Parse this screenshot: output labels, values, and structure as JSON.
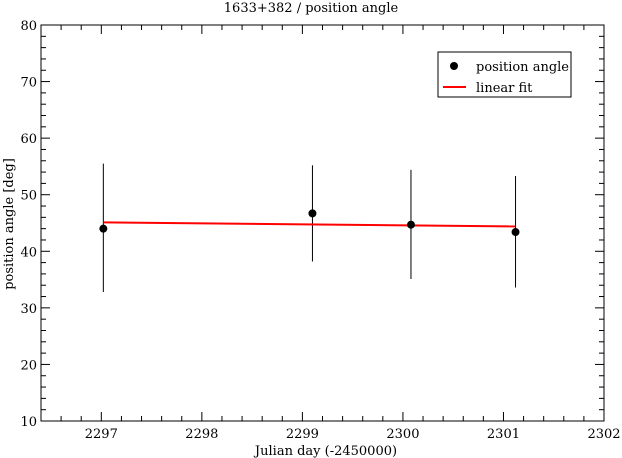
{
  "chart_data": {
    "type": "scatter",
    "title": "1633+382 / position angle",
    "xlabel": "Julian day (-2450000)",
    "ylabel": "position angle [deg]",
    "xlim": [
      2296.4,
      2302
    ],
    "ylim": [
      10,
      80
    ],
    "x_ticks": [
      2297,
      2298,
      2299,
      2300,
      2301,
      2302
    ],
    "y_ticks": [
      10,
      20,
      30,
      40,
      50,
      60,
      70,
      80
    ],
    "x_minor_step": 0.2,
    "y_minor_step": 2,
    "legend_position": "top-right",
    "grid": false,
    "series": [
      {
        "name": "position angle",
        "kind": "points-with-errorbars",
        "color": "#000000",
        "x": [
          2297.02,
          2299.1,
          2300.08,
          2301.12
        ],
        "y": [
          44.0,
          46.7,
          44.7,
          43.4
        ],
        "err_low": [
          32.8,
          38.2,
          35.1,
          33.6
        ],
        "err_high": [
          55.5,
          55.2,
          54.4,
          53.3
        ]
      },
      {
        "name": "linear fit",
        "kind": "line",
        "color": "#ff0000",
        "x": [
          2297.02,
          2301.12
        ],
        "y": [
          45.1,
          44.4
        ]
      }
    ]
  }
}
